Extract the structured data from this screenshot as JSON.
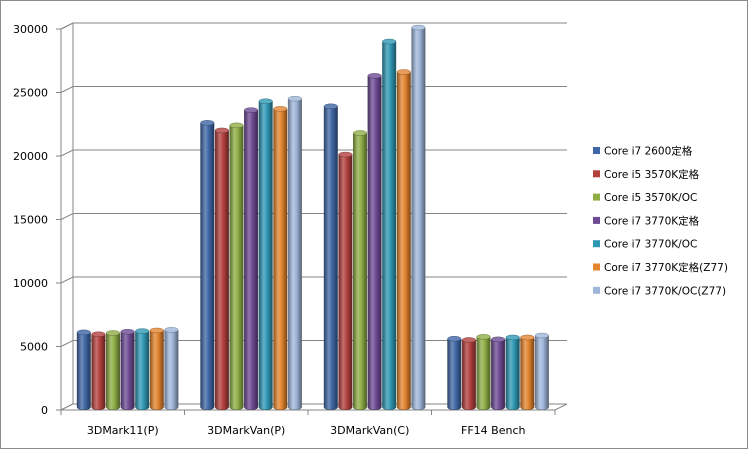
{
  "chart_data": {
    "type": "bar",
    "style": "3d-clustered-column",
    "title": "",
    "xlabel": "",
    "ylabel": "",
    "ylim": [
      0,
      30000
    ],
    "yticks": [
      0,
      5000,
      10000,
      15000,
      20000,
      25000,
      30000
    ],
    "grid": true,
    "legend_position": "right",
    "categories": [
      "3DMark11(P)",
      "3DMarkVan(P)",
      "3DMarkVan(C)",
      "FF14 Bench"
    ],
    "series": [
      {
        "name": "Core i7 2600定格",
        "color": "#3f67a6",
        "values": [
          5900,
          22400,
          23700,
          5400
        ]
      },
      {
        "name": "Core i5 3570K定格",
        "color": "#b2403d",
        "values": [
          5750,
          21800,
          19900,
          5300
        ]
      },
      {
        "name": "Core i5 3570K/OC",
        "color": "#8eae45",
        "values": [
          5850,
          22200,
          21600,
          5550
        ]
      },
      {
        "name": "Core i7 3770K定格",
        "color": "#6d4a93",
        "values": [
          5950,
          23400,
          26100,
          5350
        ]
      },
      {
        "name": "Core i7 3770K/OC",
        "color": "#2f98b4",
        "values": [
          6000,
          24100,
          28800,
          5500
        ]
      },
      {
        "name": "Core i7 3770K定格(Z77)",
        "color": "#e3842e",
        "values": [
          6050,
          23500,
          26400,
          5500
        ]
      },
      {
        "name": "Core i7 3770K/OC(Z77)",
        "color": "#9fb6da",
        "values": [
          6100,
          24300,
          29900,
          5650
        ]
      }
    ]
  }
}
